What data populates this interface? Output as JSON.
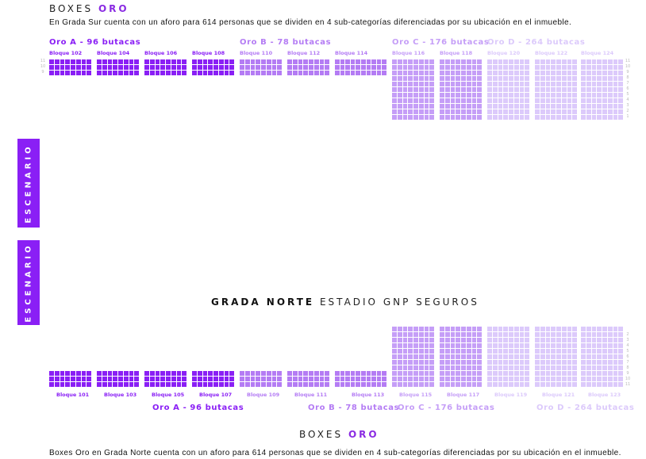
{
  "colors": {
    "A": "#8a1ff5",
    "B": "#b47cf4",
    "C": "#c59ef7",
    "D": "#dccafb"
  },
  "south": {
    "title_a": "BOXES",
    "title_b": "ORO",
    "description": "En Grada Sur cuenta con un aforo para 614 personas que se dividen en 4 sub-categorías diferenciadas por su ubicación en el inmueble.",
    "tiers": [
      {
        "label": "Oro A - 96 butacas",
        "tier": "A"
      },
      {
        "label": "Oro B - 78 butacas",
        "tier": "B"
      },
      {
        "label": "Oro C - 176 butacas",
        "tier": "C"
      },
      {
        "label": "Oro D - 264 butacas",
        "tier": "D"
      }
    ],
    "blocks": [
      {
        "label": "Bloque 102",
        "tier": "A",
        "cols": 8,
        "rows": 3
      },
      {
        "label": "Bloque 104",
        "tier": "A",
        "cols": 8,
        "rows": 3
      },
      {
        "label": "Bloque 106",
        "tier": "A",
        "cols": 8,
        "rows": 3
      },
      {
        "label": "Bloque 108",
        "tier": "A",
        "cols": 8,
        "rows": 3
      },
      {
        "label": "Bloque 110",
        "tier": "B",
        "cols": 8,
        "rows": 3
      },
      {
        "label": "Bloque 112",
        "tier": "B",
        "cols": 8,
        "rows": 3
      },
      {
        "label": "Bloque 114",
        "tier": "B",
        "cols": 10,
        "rows": 3
      },
      {
        "label": "Bloque 116",
        "tier": "C",
        "cols": 8,
        "rows": 11
      },
      {
        "label": "Bloque 118",
        "tier": "C",
        "cols": 8,
        "rows": 11
      },
      {
        "label": "Bloque 120",
        "tier": "D",
        "cols": 8,
        "rows": 11
      },
      {
        "label": "Bloque 122",
        "tier": "D",
        "cols": 8,
        "rows": 11
      },
      {
        "label": "Bloque 124",
        "tier": "D",
        "cols": 8,
        "rows": 11
      }
    ],
    "left_rows": [
      "11",
      "10",
      "9"
    ],
    "right_rows": [
      "11",
      "10",
      "9",
      "8",
      "7",
      "6",
      "5",
      "4",
      "3",
      "2",
      "1"
    ]
  },
  "stage": {
    "label": "ESCENARIO"
  },
  "north": {
    "title_a": "GRADA NORTE",
    "title_b": "ESTADIO GNP SEGUROS",
    "box_title_a": "BOXES",
    "box_title_b": "ORO",
    "description": "Boxes Oro en Grada Norte cuenta con un aforo para 614 personas que se dividen en 4 sub-categorías diferenciadas por su ubicación en el inmueble.",
    "tiers": [
      {
        "label": "Oro A - 96 butacas",
        "tier": "A"
      },
      {
        "label": "Oro B - 78 butacas",
        "tier": "B"
      },
      {
        "label": "Oro C - 176 butacas",
        "tier": "C"
      },
      {
        "label": "Oro D - 264 butacas",
        "tier": "D"
      }
    ],
    "blocks": [
      {
        "label": "Bloque 101",
        "tier": "A",
        "cols": 8,
        "rows": 3
      },
      {
        "label": "Bloque 103",
        "tier": "A",
        "cols": 8,
        "rows": 3
      },
      {
        "label": "Bloque 105",
        "tier": "A",
        "cols": 8,
        "rows": 3
      },
      {
        "label": "Bloque 107",
        "tier": "A",
        "cols": 8,
        "rows": 3
      },
      {
        "label": "Bloque 109",
        "tier": "B",
        "cols": 8,
        "rows": 3
      },
      {
        "label": "Bloque 111",
        "tier": "B",
        "cols": 8,
        "rows": 3
      },
      {
        "label": "Bloque 113",
        "tier": "B",
        "cols": 10,
        "rows": 3
      },
      {
        "label": "Bloque 115",
        "tier": "C",
        "cols": 8,
        "rows": 11
      },
      {
        "label": "Bloque 117",
        "tier": "C",
        "cols": 8,
        "rows": 11
      },
      {
        "label": "Bloque 119",
        "tier": "D",
        "cols": 8,
        "rows": 11
      },
      {
        "label": "Bloque 121",
        "tier": "D",
        "cols": 8,
        "rows": 11
      },
      {
        "label": "Bloque 123",
        "tier": "D",
        "cols": 8,
        "rows": 11
      }
    ],
    "right_rows": [
      "2",
      "3",
      "4",
      "5",
      "6",
      "7",
      "8",
      "9",
      "10",
      "11"
    ]
  }
}
